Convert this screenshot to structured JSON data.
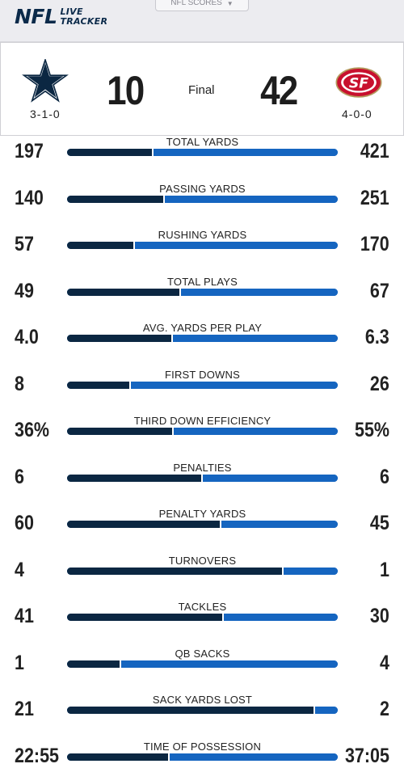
{
  "header": {
    "brand": "NFL",
    "brand_sub_1": "LIVE",
    "brand_sub_2": "TRACKER",
    "dropdown_label": "NFL SCORES",
    "dropdown_icon": "chevron-down-icon"
  },
  "game": {
    "away": {
      "name": "Dallas Cowboys",
      "logo": "star-icon",
      "record": "3-1-0",
      "score": "10",
      "color": "#0b2742"
    },
    "home": {
      "name": "San Francisco 49ers",
      "logo": "49ers-logo",
      "record": "4-0-0",
      "score": "42",
      "color": "#1565c0"
    },
    "status": "Final"
  },
  "stats": [
    {
      "label": "TOTAL YARDS",
      "left": "197",
      "right": "421",
      "left_share": 0.32
    },
    {
      "label": "PASSING YARDS",
      "left": "140",
      "right": "251",
      "left_share": 0.36
    },
    {
      "label": "RUSHING YARDS",
      "left": "57",
      "right": "170",
      "left_share": 0.25
    },
    {
      "label": "TOTAL PLAYS",
      "left": "49",
      "right": "67",
      "left_share": 0.42
    },
    {
      "label": "AVG. YARDS PER PLAY",
      "left": "4.0",
      "right": "6.3",
      "left_share": 0.39
    },
    {
      "label": "FIRST DOWNS",
      "left": "8",
      "right": "26",
      "left_share": 0.235
    },
    {
      "label": "THIRD DOWN EFFICIENCY",
      "left": "36%",
      "right": "55%",
      "left_share": 0.395
    },
    {
      "label": "PENALTIES",
      "left": "6",
      "right": "6",
      "left_share": 0.5
    },
    {
      "label": "PENALTY YARDS",
      "left": "60",
      "right": "45",
      "left_share": 0.57
    },
    {
      "label": "TURNOVERS",
      "left": "4",
      "right": "1",
      "left_share": 0.8
    },
    {
      "label": "TACKLES",
      "left": "41",
      "right": "30",
      "left_share": 0.58
    },
    {
      "label": "QB SACKS",
      "left": "1",
      "right": "4",
      "left_share": 0.2
    },
    {
      "label": "SACK YARDS LOST",
      "left": "21",
      "right": "2",
      "left_share": 0.915
    },
    {
      "label": "TIME OF POSSESSION",
      "left": "22:55",
      "right": "37:05",
      "left_share": 0.38
    }
  ]
}
